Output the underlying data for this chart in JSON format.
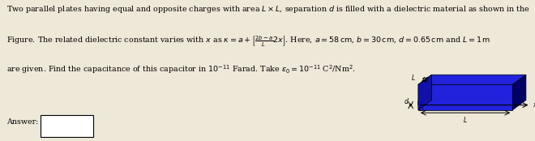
{
  "bg_color": "#ede8d8",
  "text_color": "#000000",
  "plate_blue_top": "#2222dd",
  "plate_blue_side": "#000088",
  "plate_black_top": "#111111",
  "plate_black_side": "#333333",
  "figsize": [
    6.6,
    1.74
  ],
  "dpi": 100,
  "line1": "Two parallel plates having equal and opposite charges with area $L \\times L$, separation $d$ is filled with a dielectric material as shown in the",
  "line2": "Figure. The related dielectric constant varies with $x$ as $\\kappa = a + \\left[\\frac{2b-a}{L}2x\\right]$. Here, $a = 58\\,\\mathrm{cm}$, $b = 30\\,\\mathrm{cm}$, $d = 0.65\\,\\mathrm{cm}$ and $L = 1\\,\\mathrm{m}$",
  "line3": "are given. Find the capacitance of this capacitor in $10^{-11}$ Farad. Take $\\varepsilon_0 = 10^{-11}$ C$^2$/Nm$^2$.",
  "answer_label": "Answer:"
}
